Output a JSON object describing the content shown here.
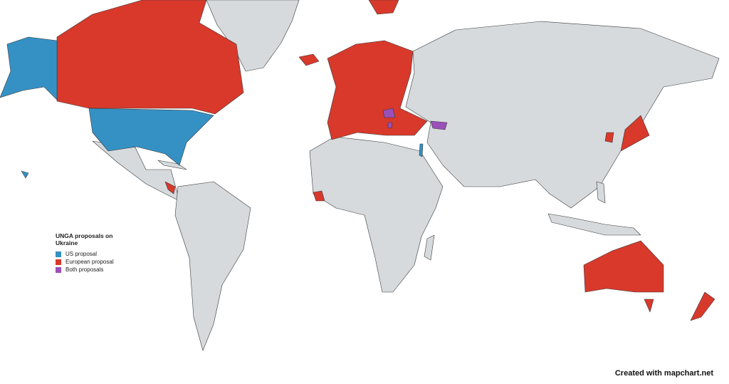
{
  "legend": {
    "title": "UNGA proposals on Ukraine",
    "items": [
      {
        "label": "US proposal",
        "color": "#3591c4"
      },
      {
        "label": "European proposal",
        "color": "#d8392b"
      },
      {
        "label": "Both proposals",
        "color": "#9b4fb8"
      }
    ]
  },
  "colors": {
    "default_land": "#d6dadd",
    "border": "#3a3a3a"
  },
  "credit": "Created with mapchart.net"
}
